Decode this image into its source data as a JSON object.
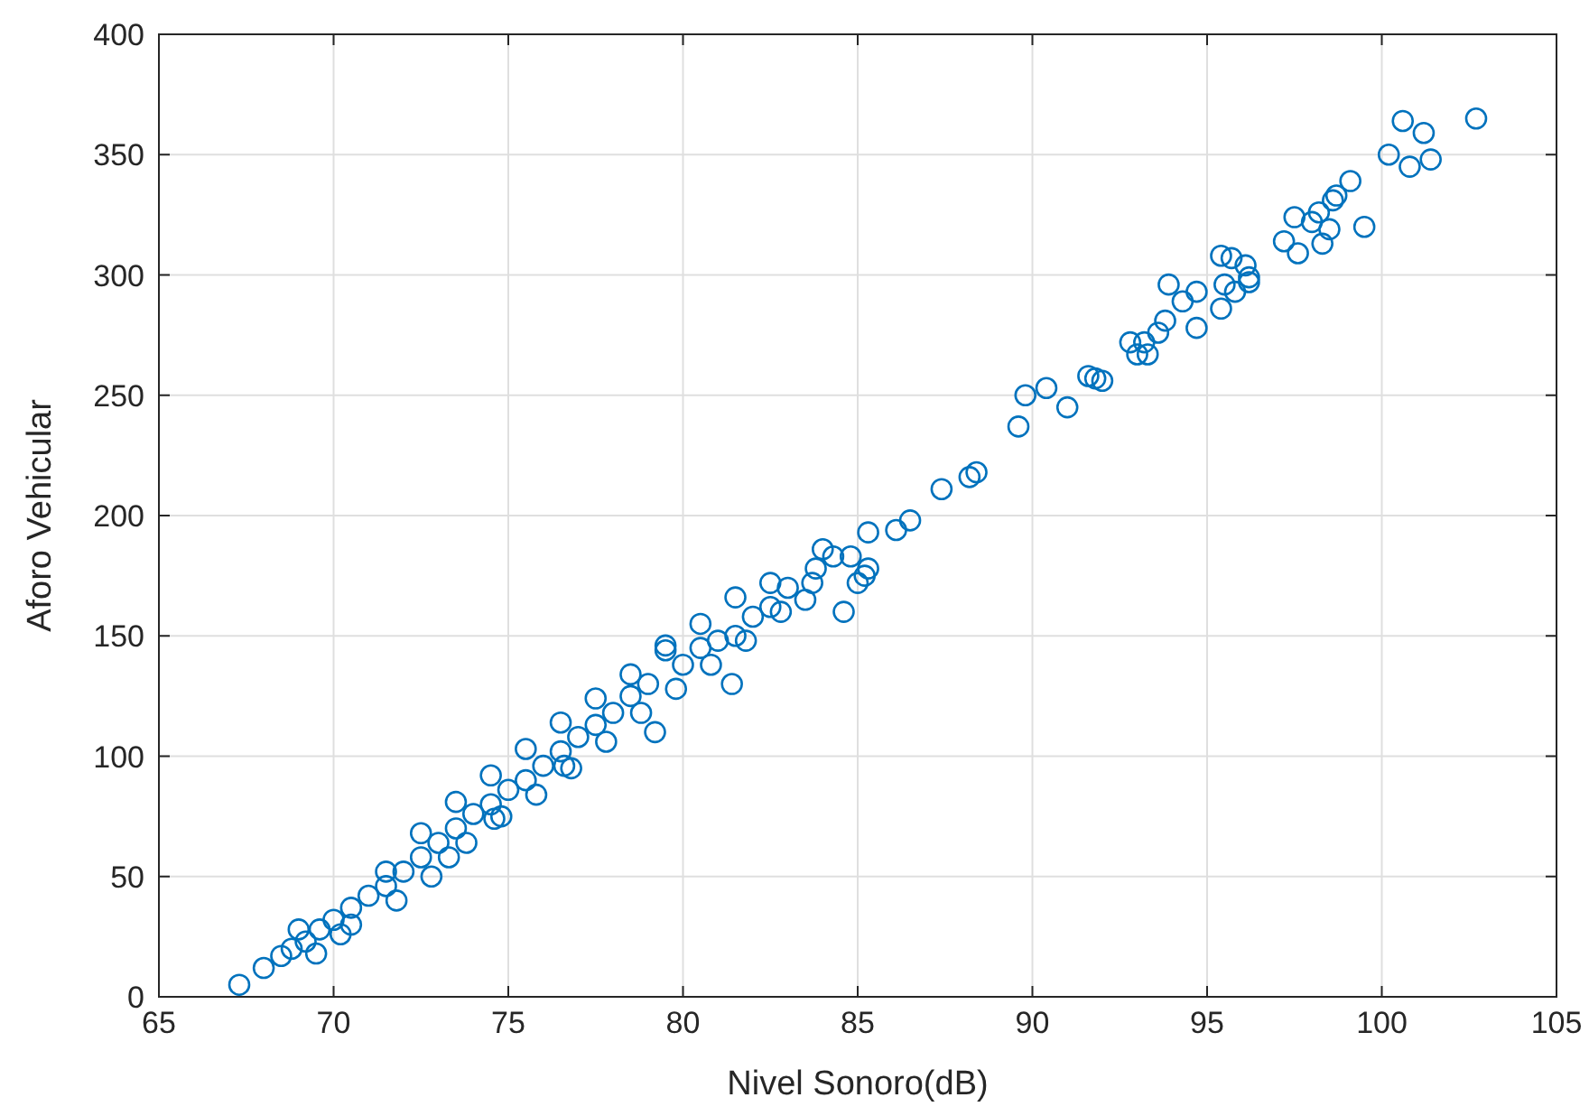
{
  "chart_data": {
    "type": "scatter",
    "xlabel": "Nivel Sonoro(dB)",
    "ylabel": "Aforo Vehicular",
    "xlim": [
      65,
      105
    ],
    "xticks": [
      65,
      70,
      75,
      80,
      85,
      90,
      95,
      100,
      105
    ],
    "ylim": [
      0,
      400
    ],
    "yticks": [
      0,
      50,
      100,
      150,
      200,
      250,
      300,
      350,
      400
    ],
    "grid": true,
    "marker": "circle",
    "series": [
      {
        "color": "#0072bd",
        "x": [
          102.7,
          100.6,
          101.2,
          100.2,
          100.8,
          101.4,
          99.1,
          98.7,
          98.6,
          97.5,
          98.0,
          98.2,
          98.5,
          97.2,
          97.6,
          98.3,
          99.5,
          95.4,
          95.7,
          96.1,
          96.2,
          95.5,
          95.8,
          96.2,
          95.4,
          94.7,
          94.3,
          93.9,
          94.7,
          93.8,
          93.6,
          93.2,
          93.0,
          93.3,
          92.8,
          91.6,
          91.8,
          92.0,
          91.0,
          90.4,
          89.8,
          89.6,
          88.4,
          88.2,
          87.4,
          86.5,
          86.1,
          85.3,
          85.3,
          85.2,
          84.8,
          84.3,
          83.8,
          83.7,
          83.5,
          82.5,
          82.0,
          81.5,
          81.0,
          80.5,
          80.0,
          79.5,
          79.0,
          78.5,
          78.0,
          77.5,
          77.0,
          76.6,
          76.5,
          76.0,
          75.5,
          75.0,
          74.8,
          74.5,
          74.0,
          73.5,
          73.3,
          73.0,
          72.5,
          72.0,
          71.5,
          71.0,
          70.5,
          70.0,
          69.6,
          69.2,
          68.8,
          68.5,
          68.0,
          67.3,
          69.5,
          70.2,
          71.8,
          72.8,
          73.8,
          74.6,
          75.8,
          76.8,
          77.8,
          78.8,
          79.8,
          80.8,
          81.8,
          82.8,
          69.0,
          70.5,
          71.5,
          72.5,
          73.5,
          74.5,
          75.5,
          76.5,
          77.5,
          78.5,
          79.5,
          80.5,
          81.5,
          82.5,
          83.0,
          84.0,
          79.2,
          81.4,
          84.6,
          85.0
        ],
        "values": [
          365,
          364,
          359,
          350,
          345,
          348,
          339,
          333,
          331,
          324,
          322,
          326,
          319,
          314,
          309,
          313,
          320,
          308,
          307,
          304,
          299,
          296,
          293,
          297,
          286,
          293,
          289,
          296,
          278,
          281,
          276,
          272,
          267,
          267,
          272,
          258,
          257,
          256,
          245,
          253,
          250,
          237,
          218,
          216,
          211,
          198,
          194,
          193,
          178,
          175,
          183,
          183,
          178,
          172,
          165,
          162,
          158,
          150,
          148,
          145,
          138,
          146,
          130,
          125,
          118,
          113,
          108,
          96,
          102,
          96,
          90,
          86,
          75,
          80,
          76,
          70,
          58,
          64,
          58,
          52,
          46,
          42,
          37,
          32,
          28,
          23,
          20,
          17,
          12,
          5,
          18,
          26,
          40,
          50,
          64,
          74,
          84,
          95,
          106,
          118,
          128,
          138,
          148,
          160,
          28,
          30,
          52,
          68,
          81,
          92,
          103,
          114,
          124,
          134,
          144,
          155,
          166,
          172,
          170,
          186,
          110,
          130,
          160,
          172
        ]
      }
    ]
  }
}
